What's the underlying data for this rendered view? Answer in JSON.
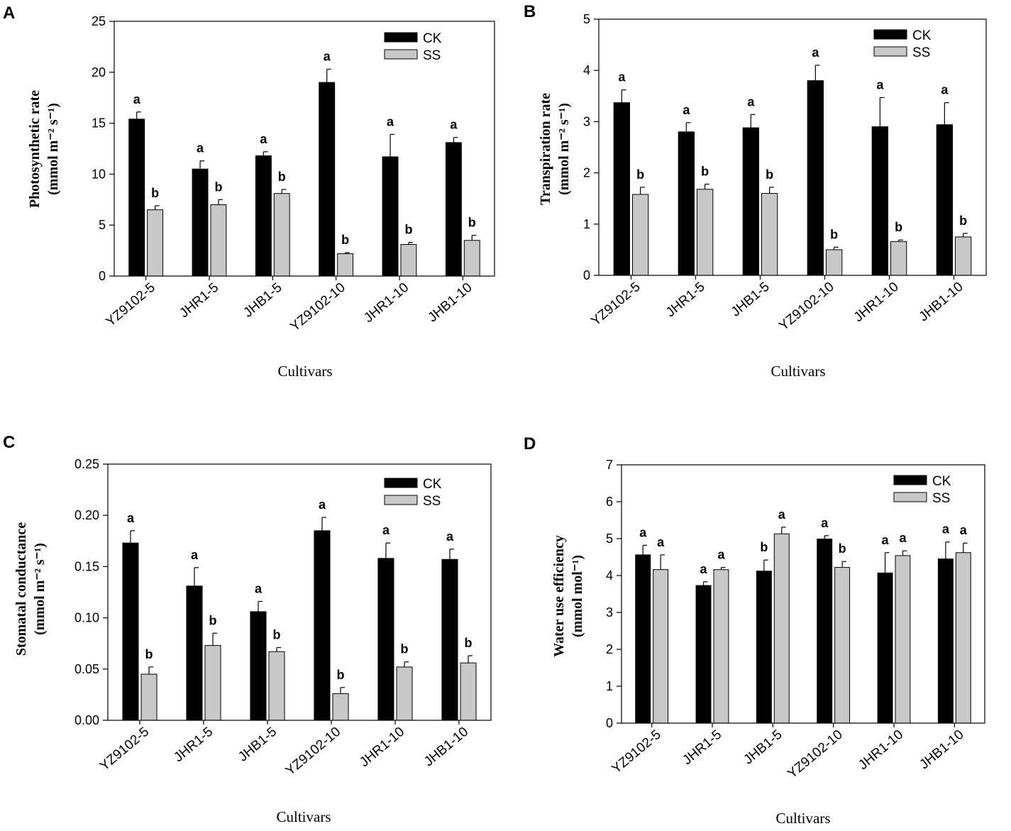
{
  "figure": {
    "colors": {
      "CK": "#000000",
      "SS": "#c8c8c8"
    }
  },
  "chart_data": [
    {
      "panel": "A",
      "type": "bar",
      "ylabel_line1": "Photosynthetic rate",
      "ylabel_unit": "(mmol m⁻² s⁻¹)",
      "xlabel": "Cultivars",
      "ylim": [
        0,
        25
      ],
      "yticks": [
        "0",
        "5",
        "10",
        "15",
        "20",
        "25"
      ],
      "categories": [
        "YZ9102-5",
        "JHR1-5",
        "JHB1-5",
        "YZ9102-10",
        "JHR1-10",
        "JHB1-10"
      ],
      "series": [
        {
          "name": "CK",
          "values": [
            15.4,
            10.5,
            11.8,
            19.0,
            11.7,
            13.1
          ],
          "errors": [
            0.7,
            0.8,
            0.4,
            1.3,
            2.2,
            0.5
          ],
          "sig": [
            "a",
            "a",
            "a",
            "a",
            "a",
            "a"
          ]
        },
        {
          "name": "SS",
          "values": [
            6.5,
            7.0,
            8.1,
            2.2,
            3.1,
            3.5
          ],
          "errors": [
            0.4,
            0.5,
            0.4,
            0.1,
            0.2,
            0.5
          ],
          "sig": [
            "b",
            "b",
            "b",
            "b",
            "b",
            "b"
          ]
        }
      ]
    },
    {
      "panel": "B",
      "type": "bar",
      "ylabel_line1": "Transpiration rate",
      "ylabel_unit": "(mmol m⁻² s⁻¹)",
      "xlabel": "Cultivars",
      "ylim": [
        0,
        5
      ],
      "yticks": [
        "0",
        "1",
        "2",
        "3",
        "4",
        "5"
      ],
      "categories": [
        "YZ9102-5",
        "JHR1-5",
        "JHB1-5",
        "YZ9102-10",
        "JHR1-10",
        "JHB1-10"
      ],
      "series": [
        {
          "name": "CK",
          "values": [
            3.37,
            2.8,
            2.88,
            3.8,
            2.9,
            2.94
          ],
          "errors": [
            0.25,
            0.18,
            0.26,
            0.3,
            0.57,
            0.43
          ],
          "sig": [
            "a",
            "a",
            "a",
            "a",
            "a",
            "a"
          ]
        },
        {
          "name": "SS",
          "values": [
            1.58,
            1.68,
            1.6,
            0.5,
            0.66,
            0.75
          ],
          "errors": [
            0.14,
            0.1,
            0.12,
            0.05,
            0.03,
            0.07
          ],
          "sig": [
            "b",
            "b",
            "b",
            "b",
            "b",
            "b"
          ]
        }
      ]
    },
    {
      "panel": "C",
      "type": "bar",
      "ylabel_line1": "Stomatal conductance",
      "ylabel_unit": "(mmol m⁻² s⁻¹)",
      "xlabel": "Cultivars",
      "ylim": [
        0,
        0.25
      ],
      "yticks": [
        "0.00",
        "0.05",
        "0.10",
        "0.15",
        "0.20",
        "0.25"
      ],
      "categories": [
        "YZ9102-5",
        "JHR1-5",
        "JHB1-5",
        "YZ9102-10",
        "JHR1-10",
        "JHB1-10"
      ],
      "series": [
        {
          "name": "CK",
          "values": [
            0.173,
            0.131,
            0.106,
            0.185,
            0.158,
            0.157
          ],
          "errors": [
            0.012,
            0.018,
            0.01,
            0.013,
            0.015,
            0.01
          ],
          "sig": [
            "a",
            "a",
            "a",
            "a",
            "a",
            "a"
          ]
        },
        {
          "name": "SS",
          "values": [
            0.045,
            0.073,
            0.067,
            0.026,
            0.052,
            0.056
          ],
          "errors": [
            0.007,
            0.012,
            0.004,
            0.006,
            0.005,
            0.007
          ],
          "sig": [
            "b",
            "b",
            "b",
            "b",
            "b",
            "b"
          ]
        }
      ]
    },
    {
      "panel": "D",
      "type": "bar",
      "ylabel_line1": "Water use efficiency",
      "ylabel_unit": "(mmol mol⁻¹)",
      "xlabel": "Cultivars",
      "ylim": [
        0,
        7
      ],
      "yticks": [
        "0",
        "1",
        "2",
        "3",
        "4",
        "5",
        "6",
        "7"
      ],
      "categories": [
        "YZ9102-5",
        "JHR1-5",
        "JHB1-5",
        "YZ9102-10",
        "JHR1-10",
        "JHB1-10"
      ],
      "series": [
        {
          "name": "CK",
          "values": [
            4.56,
            3.73,
            4.12,
            4.99,
            4.07,
            4.45
          ],
          "errors": [
            0.26,
            0.1,
            0.3,
            0.09,
            0.55,
            0.46
          ],
          "sig": [
            "a",
            "a",
            "b",
            "a",
            "a",
            "a"
          ]
        },
        {
          "name": "SS",
          "values": [
            4.16,
            4.16,
            5.13,
            4.22,
            4.54,
            4.62
          ],
          "errors": [
            0.4,
            0.06,
            0.18,
            0.16,
            0.13,
            0.26
          ],
          "sig": [
            "a",
            "a",
            "a",
            "b",
            "a",
            "a"
          ]
        }
      ]
    }
  ]
}
